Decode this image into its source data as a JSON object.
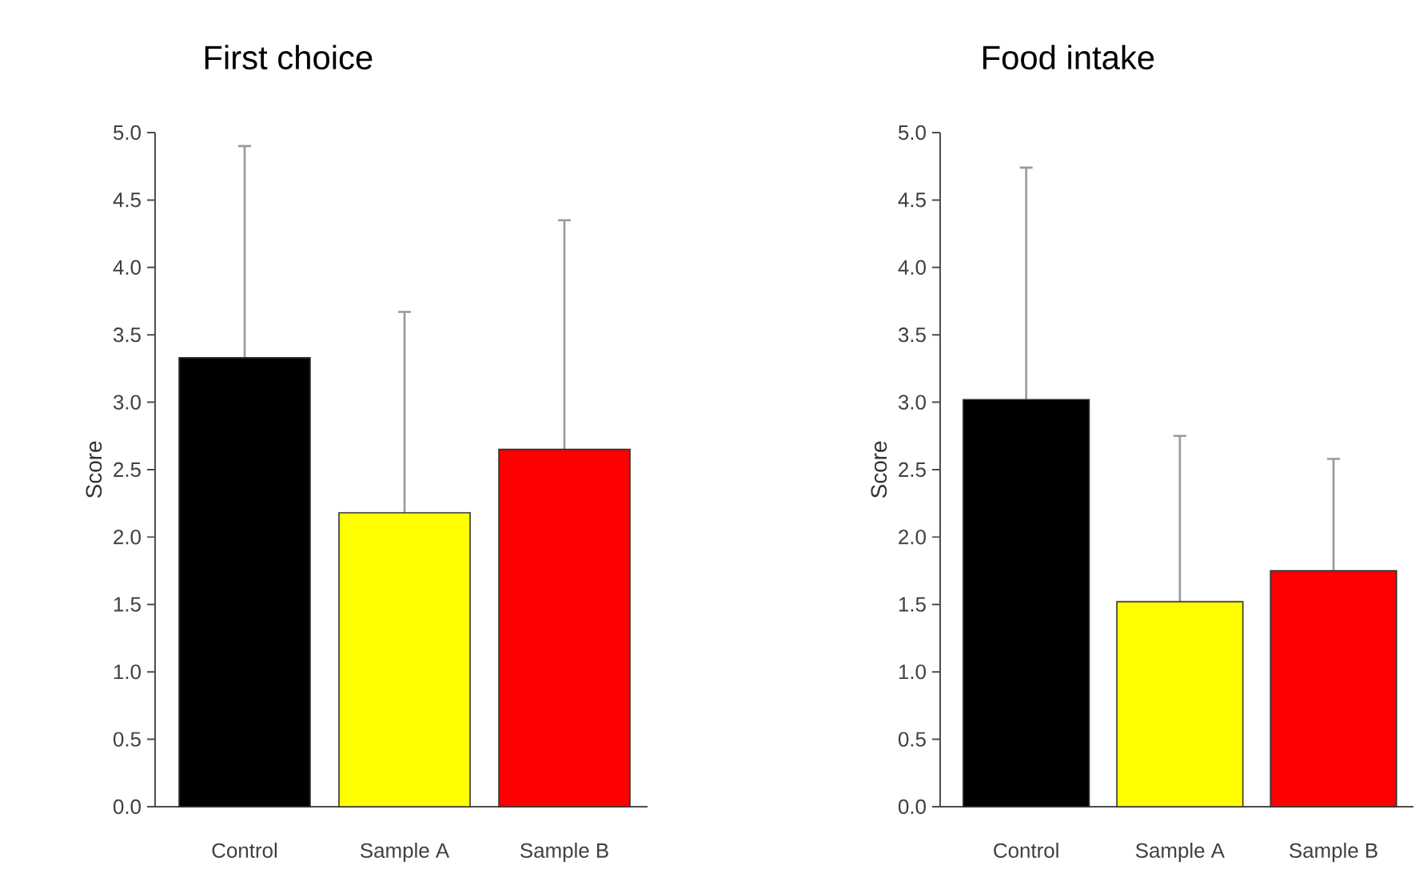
{
  "chart_data": [
    {
      "type": "bar",
      "title": "First choice",
      "ylabel": "Score",
      "categories": [
        "Control",
        "Sample A",
        "Sample B"
      ],
      "values": [
        3.33,
        2.18,
        2.65
      ],
      "colors": [
        "#000000",
        "#ffff00",
        "#ff0000"
      ],
      "errors": [
        [
          3.33,
          4.9
        ],
        [
          2.18,
          3.67
        ],
        [
          2.65,
          4.35
        ]
      ],
      "ylim": [
        0,
        5
      ],
      "yticks": [
        {
          "value": 0,
          "label": "0.0"
        },
        {
          "value": 0.5,
          "label": "0.5"
        },
        {
          "value": 1,
          "label": "1.0"
        },
        {
          "value": 1.5,
          "label": "1.5"
        },
        {
          "value": 2,
          "label": "2.0"
        },
        {
          "value": 2.5,
          "label": "2.5"
        },
        {
          "value": 3,
          "label": "3.0"
        },
        {
          "value": 3.5,
          "label": "3.5"
        },
        {
          "value": 4,
          "label": "4.0"
        },
        {
          "value": 4.5,
          "label": "4.5"
        },
        {
          "value": 5,
          "label": "5.0"
        }
      ]
    },
    {
      "type": "bar",
      "title": "Food intake",
      "ylabel": "Score",
      "categories": [
        "Control",
        "Sample A",
        "Sample B"
      ],
      "values": [
        3.02,
        1.52,
        1.75
      ],
      "colors": [
        "#000000",
        "#ffff00",
        "#ff0000"
      ],
      "errors": [
        [
          3.02,
          4.74
        ],
        [
          1.52,
          2.75
        ],
        [
          1.75,
          2.58
        ]
      ],
      "ylim": [
        0,
        5
      ],
      "yticks": [
        {
          "value": 0,
          "label": "0.0"
        },
        {
          "value": 0.5,
          "label": "0.5"
        },
        {
          "value": 1,
          "label": "1.0"
        },
        {
          "value": 1.5,
          "label": "1.5"
        },
        {
          "value": 2,
          "label": "2.0"
        },
        {
          "value": 2.5,
          "label": "2.5"
        },
        {
          "value": 3,
          "label": "3.0"
        },
        {
          "value": 3.5,
          "label": "3.5"
        },
        {
          "value": 4,
          "label": "4.0"
        },
        {
          "value": 4.5,
          "label": "4.5"
        },
        {
          "value": 5,
          "label": "5.0"
        }
      ]
    }
  ]
}
